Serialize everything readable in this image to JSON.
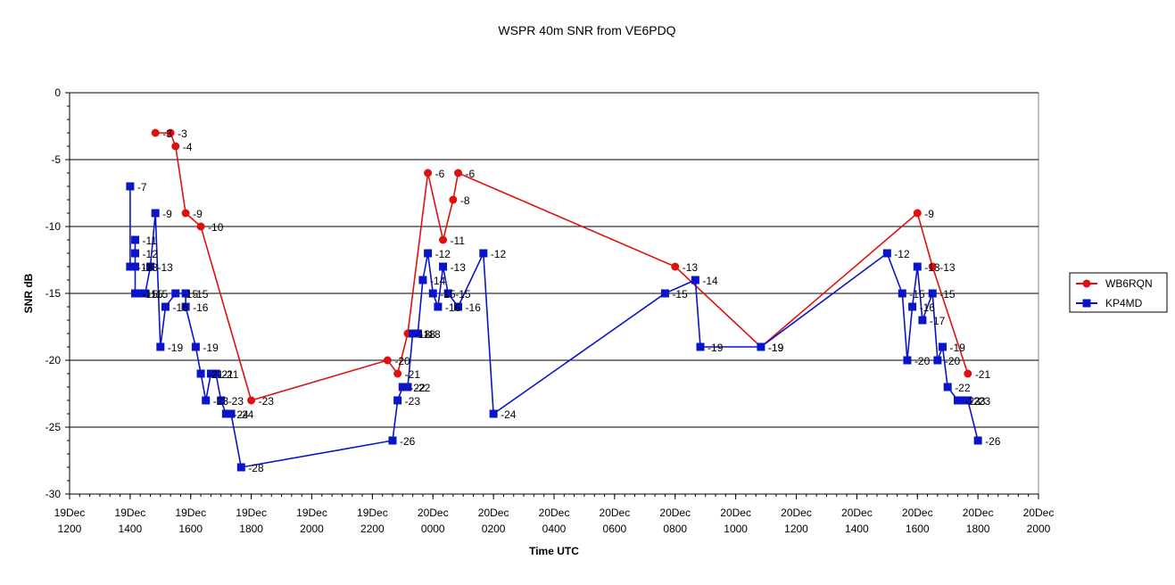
{
  "chart_data": {
    "type": "line",
    "title": "WSPR 40m SNR from VE6PDQ",
    "xlabel": "Time UTC",
    "ylabel": "SNR dB",
    "ylim": [
      -30,
      0
    ],
    "yticks": [
      0,
      -5,
      -10,
      -15,
      -20,
      -25,
      -30
    ],
    "xlim": [
      "19Dec 1200",
      "20Dec 2000"
    ],
    "x_tick_labels": [
      [
        "19Dec",
        "1200"
      ],
      [
        "19Dec",
        "1400"
      ],
      [
        "19Dec",
        "1600"
      ],
      [
        "19Dec",
        "1800"
      ],
      [
        "19Dec",
        "2000"
      ],
      [
        "19Dec",
        "2200"
      ],
      [
        "20Dec",
        "0000"
      ],
      [
        "20Dec",
        "0200"
      ],
      [
        "20Dec",
        "0400"
      ],
      [
        "20Dec",
        "0600"
      ],
      [
        "20Dec",
        "0800"
      ],
      [
        "20Dec",
        "1000"
      ],
      [
        "20Dec",
        "1200"
      ],
      [
        "20Dec",
        "1400"
      ],
      [
        "20Dec",
        "1600"
      ],
      [
        "20Dec",
        "1800"
      ],
      [
        "20Dec",
        "2000"
      ]
    ],
    "grid": "horizontal",
    "legend_position": "right",
    "colors": {
      "WB6RQN": "#dd1111",
      "KP4MD": "#0a14c8"
    },
    "series": [
      {
        "name": "WB6RQN",
        "marker": "circle",
        "points": [
          [
            "19Dec 1450",
            -3
          ],
          [
            "19Dec 1520",
            -3
          ],
          [
            "19Dec 1530",
            -4
          ],
          [
            "19Dec 1550",
            -9
          ],
          [
            "19Dec 1620",
            -10
          ],
          [
            "19Dec 1800",
            -23
          ],
          [
            "19Dec 2230",
            -20
          ],
          [
            "19Dec 2250",
            -21
          ],
          [
            "19Dec 2310",
            -18
          ],
          [
            "19Dec 2350",
            -6
          ],
          [
            "20Dec 0020",
            -11
          ],
          [
            "20Dec 0040",
            -8
          ],
          [
            "20Dec 0050",
            -6
          ],
          [
            "20Dec 0800",
            -13
          ],
          [
            "20Dec 1050",
            -19
          ],
          [
            "20Dec 1600",
            -9
          ],
          [
            "20Dec 1630",
            -13
          ],
          [
            "20Dec 1740",
            -21
          ]
        ]
      },
      {
        "name": "KP4MD",
        "marker": "square",
        "points": [
          [
            "19Dec 1400",
            -7
          ],
          [
            "19Dec 1400",
            -13
          ],
          [
            "19Dec 1410",
            -13
          ],
          [
            "19Dec 1410",
            -11
          ],
          [
            "19Dec 1410",
            -12
          ],
          [
            "19Dec 1410",
            -15
          ],
          [
            "19Dec 1420",
            -15
          ],
          [
            "19Dec 1430",
            -15
          ],
          [
            "19Dec 1440",
            -13
          ],
          [
            "19Dec 1450",
            -9
          ],
          [
            "19Dec 1500",
            -19
          ],
          [
            "19Dec 1510",
            -16
          ],
          [
            "19Dec 1530",
            -15
          ],
          [
            "19Dec 1550",
            -15
          ],
          [
            "19Dec 1550",
            -16
          ],
          [
            "19Dec 1610",
            -19
          ],
          [
            "19Dec 1620",
            -21
          ],
          [
            "19Dec 1630",
            -23
          ],
          [
            "19Dec 1640",
            -21
          ],
          [
            "19Dec 1650",
            -21
          ],
          [
            "19Dec 1700",
            -23
          ],
          [
            "19Dec 1710",
            -24
          ],
          [
            "19Dec 1720",
            -24
          ],
          [
            "19Dec 1740",
            -28
          ],
          [
            "19Dec 2240",
            -26
          ],
          [
            "19Dec 2250",
            -23
          ],
          [
            "19Dec 2300",
            -22
          ],
          [
            "19Dec 2310",
            -22
          ],
          [
            "19Dec 2320",
            -18
          ],
          [
            "19Dec 2330",
            -18
          ],
          [
            "19Dec 2340",
            -14
          ],
          [
            "19Dec 2350",
            -12
          ],
          [
            "20Dec 0000",
            -15
          ],
          [
            "20Dec 0010",
            -16
          ],
          [
            "20Dec 0020",
            -13
          ],
          [
            "20Dec 0030",
            -15
          ],
          [
            "20Dec 0050",
            -16
          ],
          [
            "20Dec 0140",
            -12
          ],
          [
            "20Dec 0200",
            -24
          ],
          [
            "20Dec 0740",
            -15
          ],
          [
            "20Dec 0840",
            -14
          ],
          [
            "20Dec 0850",
            -19
          ],
          [
            "20Dec 1050",
            -19
          ],
          [
            "20Dec 1500",
            -12
          ],
          [
            "20Dec 1530",
            -15
          ],
          [
            "20Dec 1540",
            -20
          ],
          [
            "20Dec 1550",
            -16
          ],
          [
            "20Dec 1600",
            -13
          ],
          [
            "20Dec 1610",
            -17
          ],
          [
            "20Dec 1630",
            -15
          ],
          [
            "20Dec 1640",
            -20
          ],
          [
            "20Dec 1650",
            -19
          ],
          [
            "20Dec 1700",
            -22
          ],
          [
            "20Dec 1720",
            -23
          ],
          [
            "20Dec 1730",
            -23
          ],
          [
            "20Dec 1740",
            -23
          ],
          [
            "20Dec 1800",
            -26
          ]
        ]
      }
    ]
  }
}
